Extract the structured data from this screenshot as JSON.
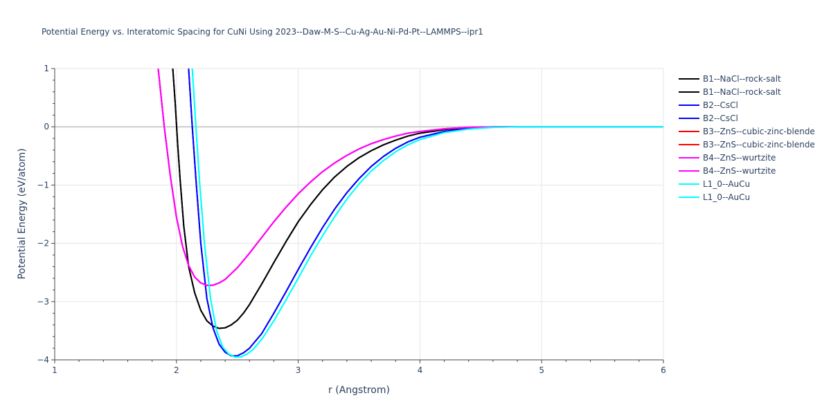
{
  "chart_data": {
    "type": "line",
    "title": "Potential Energy vs. Interatomic Spacing for CuNi Using 2023--Daw-M-S--Cu-Ag-Au-Ni-Pd-Pt--LAMMPS--ipr1",
    "xlabel": "r (Angstrom)",
    "ylabel": "Potential Energy (eV/atom)",
    "xlim": [
      1,
      6
    ],
    "ylim": [
      -4,
      1
    ],
    "x_ticks": [
      1,
      2,
      3,
      4,
      5,
      6
    ],
    "y_ticks": [
      1,
      0,
      -1,
      -2,
      -3,
      -4
    ],
    "x_tick_labels": [
      "1",
      "2",
      "3",
      "4",
      "5",
      "6"
    ],
    "y_tick_labels": [
      "1",
      "0",
      "−1",
      "−2",
      "−3",
      "−4"
    ],
    "grid": true,
    "legend_position": "right",
    "series": [
      {
        "name": "B1--NaCl--rock-salt",
        "color": "#000000",
        "x": [
          1.97,
          1.99,
          2.01,
          2.03,
          2.06,
          2.1,
          2.15,
          2.2,
          2.25,
          2.3,
          2.35,
          2.4,
          2.45,
          2.5,
          2.55,
          2.6,
          2.7,
          2.8,
          2.9,
          3.0,
          3.1,
          3.2,
          3.3,
          3.4,
          3.5,
          3.6,
          3.7,
          3.8,
          3.9,
          4.0,
          4.2,
          4.4,
          4.6,
          4.8,
          5.0,
          5.5,
          6.0
        ],
        "y": [
          1.0,
          0.4,
          -0.3,
          -0.9,
          -1.7,
          -2.4,
          -2.85,
          -3.15,
          -3.33,
          -3.42,
          -3.46,
          -3.45,
          -3.4,
          -3.32,
          -3.2,
          -3.05,
          -2.7,
          -2.33,
          -1.97,
          -1.63,
          -1.34,
          -1.08,
          -0.86,
          -0.68,
          -0.53,
          -0.41,
          -0.31,
          -0.23,
          -0.16,
          -0.11,
          -0.05,
          -0.015,
          -0.003,
          0.0,
          0.0,
          0.0,
          0.0
        ]
      },
      {
        "name": "B1--NaCl--rock-salt",
        "color": "#000000",
        "x": [
          1.97,
          1.99,
          2.01,
          2.03,
          2.06,
          2.1,
          2.15,
          2.2,
          2.25,
          2.3,
          2.35,
          2.4,
          2.45,
          2.5,
          2.55,
          2.6,
          2.7,
          2.8,
          2.9,
          3.0,
          3.1,
          3.2,
          3.3,
          3.4,
          3.5,
          3.6,
          3.7,
          3.8,
          3.9,
          4.0,
          4.2,
          4.4,
          4.6,
          4.8,
          5.0,
          5.5,
          6.0
        ],
        "y": [
          1.0,
          0.4,
          -0.3,
          -0.9,
          -1.7,
          -2.4,
          -2.85,
          -3.15,
          -3.33,
          -3.42,
          -3.46,
          -3.45,
          -3.4,
          -3.32,
          -3.2,
          -3.05,
          -2.7,
          -2.33,
          -1.97,
          -1.63,
          -1.34,
          -1.08,
          -0.86,
          -0.68,
          -0.53,
          -0.41,
          -0.31,
          -0.23,
          -0.16,
          -0.11,
          -0.05,
          -0.015,
          -0.003,
          0.0,
          0.0,
          0.0,
          0.0
        ]
      },
      {
        "name": "B2--CsCl",
        "color": "#0000ff",
        "x": [
          2.1,
          2.13,
          2.16,
          2.2,
          2.25,
          2.3,
          2.35,
          2.4,
          2.45,
          2.5,
          2.55,
          2.6,
          2.7,
          2.8,
          2.9,
          3.0,
          3.1,
          3.2,
          3.3,
          3.4,
          3.5,
          3.6,
          3.7,
          3.8,
          3.9,
          4.0,
          4.2,
          4.4,
          4.6,
          4.8,
          5.0,
          5.5,
          6.0
        ],
        "y": [
          1.0,
          0.0,
          -0.9,
          -2.0,
          -2.95,
          -3.45,
          -3.73,
          -3.87,
          -3.93,
          -3.93,
          -3.88,
          -3.8,
          -3.55,
          -3.2,
          -2.83,
          -2.45,
          -2.08,
          -1.73,
          -1.41,
          -1.13,
          -0.89,
          -0.68,
          -0.51,
          -0.37,
          -0.26,
          -0.18,
          -0.08,
          -0.03,
          -0.005,
          0.0,
          0.0,
          0.0,
          0.0
        ]
      },
      {
        "name": "B2--CsCl",
        "color": "#0000ff",
        "x": [
          2.1,
          2.13,
          2.16,
          2.2,
          2.25,
          2.3,
          2.35,
          2.4,
          2.45,
          2.5,
          2.55,
          2.6,
          2.7,
          2.8,
          2.9,
          3.0,
          3.1,
          3.2,
          3.3,
          3.4,
          3.5,
          3.6,
          3.7,
          3.8,
          3.9,
          4.0,
          4.2,
          4.4,
          4.6,
          4.8,
          5.0,
          5.5,
          6.0
        ],
        "y": [
          1.0,
          0.0,
          -0.9,
          -2.0,
          -2.95,
          -3.45,
          -3.73,
          -3.87,
          -3.93,
          -3.93,
          -3.88,
          -3.8,
          -3.55,
          -3.2,
          -2.83,
          -2.45,
          -2.08,
          -1.73,
          -1.41,
          -1.13,
          -0.89,
          -0.68,
          -0.51,
          -0.37,
          -0.26,
          -0.18,
          -0.08,
          -0.03,
          -0.005,
          0.0,
          0.0,
          0.0,
          0.0
        ]
      },
      {
        "name": "B3--ZnS--cubic-zinc-blende",
        "color": "#ff0000",
        "x": [
          1.85,
          1.9,
          1.95,
          2.0,
          2.05,
          2.1,
          2.15,
          2.2,
          2.25,
          2.3,
          2.35,
          2.4,
          2.5,
          2.6,
          2.7,
          2.8,
          2.9,
          3.0,
          3.1,
          3.2,
          3.3,
          3.4,
          3.5,
          3.6,
          3.7,
          3.8,
          3.9,
          4.0,
          4.2,
          4.4,
          4.6,
          4.8,
          5.0,
          5.5,
          6.0
        ],
        "y": [
          1.0,
          0.0,
          -0.85,
          -1.55,
          -2.05,
          -2.38,
          -2.58,
          -2.68,
          -2.72,
          -2.72,
          -2.68,
          -2.62,
          -2.42,
          -2.17,
          -1.9,
          -1.63,
          -1.38,
          -1.15,
          -0.95,
          -0.77,
          -0.62,
          -0.49,
          -0.38,
          -0.29,
          -0.22,
          -0.16,
          -0.11,
          -0.08,
          -0.035,
          -0.01,
          -0.002,
          0.0,
          0.0,
          0.0,
          0.0
        ]
      },
      {
        "name": "B3--ZnS--cubic-zinc-blende",
        "color": "#ff0000",
        "x": [
          1.85,
          1.9,
          1.95,
          2.0,
          2.05,
          2.1,
          2.15,
          2.2,
          2.25,
          2.3,
          2.35,
          2.4,
          2.5,
          2.6,
          2.7,
          2.8,
          2.9,
          3.0,
          3.1,
          3.2,
          3.3,
          3.4,
          3.5,
          3.6,
          3.7,
          3.8,
          3.9,
          4.0,
          4.2,
          4.4,
          4.6,
          4.8,
          5.0,
          5.5,
          6.0
        ],
        "y": [
          1.0,
          0.0,
          -0.85,
          -1.55,
          -2.05,
          -2.38,
          -2.58,
          -2.68,
          -2.72,
          -2.72,
          -2.68,
          -2.62,
          -2.42,
          -2.17,
          -1.9,
          -1.63,
          -1.38,
          -1.15,
          -0.95,
          -0.77,
          -0.62,
          -0.49,
          -0.38,
          -0.29,
          -0.22,
          -0.16,
          -0.11,
          -0.08,
          -0.035,
          -0.01,
          -0.002,
          0.0,
          0.0,
          0.0,
          0.0
        ]
      },
      {
        "name": "B4--ZnS--wurtzite",
        "color": "#ff00ff",
        "x": [
          1.85,
          1.9,
          1.95,
          2.0,
          2.05,
          2.1,
          2.15,
          2.2,
          2.25,
          2.3,
          2.35,
          2.4,
          2.5,
          2.6,
          2.7,
          2.8,
          2.9,
          3.0,
          3.1,
          3.2,
          3.3,
          3.4,
          3.5,
          3.6,
          3.7,
          3.8,
          3.9,
          4.0,
          4.2,
          4.4,
          4.6,
          4.8,
          5.0,
          5.5,
          6.0
        ],
        "y": [
          1.0,
          0.0,
          -0.85,
          -1.55,
          -2.05,
          -2.38,
          -2.58,
          -2.68,
          -2.72,
          -2.72,
          -2.68,
          -2.62,
          -2.42,
          -2.17,
          -1.9,
          -1.63,
          -1.38,
          -1.15,
          -0.95,
          -0.77,
          -0.62,
          -0.49,
          -0.38,
          -0.29,
          -0.22,
          -0.16,
          -0.11,
          -0.08,
          -0.035,
          -0.01,
          -0.002,
          0.0,
          0.0,
          0.0,
          0.0
        ]
      },
      {
        "name": "B4--ZnS--wurtzite",
        "color": "#ff00ff",
        "x": [
          1.85,
          1.9,
          1.95,
          2.0,
          2.05,
          2.1,
          2.15,
          2.2,
          2.25,
          2.3,
          2.35,
          2.4,
          2.5,
          2.6,
          2.7,
          2.8,
          2.9,
          3.0,
          3.1,
          3.2,
          3.3,
          3.4,
          3.5,
          3.6,
          3.7,
          3.8,
          3.9,
          4.0,
          4.2,
          4.4,
          4.6,
          4.8,
          5.0,
          5.5,
          6.0
        ],
        "y": [
          1.0,
          0.0,
          -0.85,
          -1.55,
          -2.05,
          -2.38,
          -2.58,
          -2.68,
          -2.72,
          -2.72,
          -2.68,
          -2.62,
          -2.42,
          -2.17,
          -1.9,
          -1.63,
          -1.38,
          -1.15,
          -0.95,
          -0.77,
          -0.62,
          -0.49,
          -0.38,
          -0.29,
          -0.22,
          -0.16,
          -0.11,
          -0.08,
          -0.035,
          -0.01,
          -0.002,
          0.0,
          0.0,
          0.0,
          0.0
        ]
      },
      {
        "name": "L1_0--AuCu",
        "color": "#00ffff",
        "x": [
          2.13,
          2.16,
          2.19,
          2.23,
          2.28,
          2.33,
          2.38,
          2.43,
          2.48,
          2.53,
          2.58,
          2.63,
          2.7,
          2.8,
          2.9,
          3.0,
          3.1,
          3.2,
          3.3,
          3.4,
          3.5,
          3.6,
          3.7,
          3.8,
          3.9,
          4.0,
          4.2,
          4.4,
          4.6,
          4.8,
          5.0,
          5.5,
          6.0
        ],
        "y": [
          1.0,
          0.0,
          -0.95,
          -2.0,
          -2.95,
          -3.5,
          -3.78,
          -3.9,
          -3.95,
          -3.95,
          -3.9,
          -3.82,
          -3.65,
          -3.33,
          -2.97,
          -2.6,
          -2.22,
          -1.87,
          -1.54,
          -1.24,
          -0.98,
          -0.76,
          -0.58,
          -0.43,
          -0.31,
          -0.22,
          -0.1,
          -0.04,
          -0.01,
          0.0,
          0.0,
          0.0,
          0.0
        ]
      },
      {
        "name": "L1_0--AuCu",
        "color": "#00ffff",
        "x": [
          2.13,
          2.16,
          2.19,
          2.23,
          2.28,
          2.33,
          2.38,
          2.43,
          2.48,
          2.53,
          2.58,
          2.63,
          2.7,
          2.8,
          2.9,
          3.0,
          3.1,
          3.2,
          3.3,
          3.4,
          3.5,
          3.6,
          3.7,
          3.8,
          3.9,
          4.0,
          4.2,
          4.4,
          4.6,
          4.8,
          5.0,
          5.5,
          6.0
        ],
        "y": [
          1.0,
          0.0,
          -0.95,
          -2.0,
          -2.95,
          -3.5,
          -3.78,
          -3.9,
          -3.95,
          -3.95,
          -3.9,
          -3.82,
          -3.65,
          -3.33,
          -2.97,
          -2.6,
          -2.22,
          -1.87,
          -1.54,
          -1.24,
          -0.98,
          -0.76,
          -0.58,
          -0.43,
          -0.31,
          -0.22,
          -0.1,
          -0.04,
          -0.01,
          0.0,
          0.0,
          0.0,
          0.0
        ]
      }
    ]
  }
}
